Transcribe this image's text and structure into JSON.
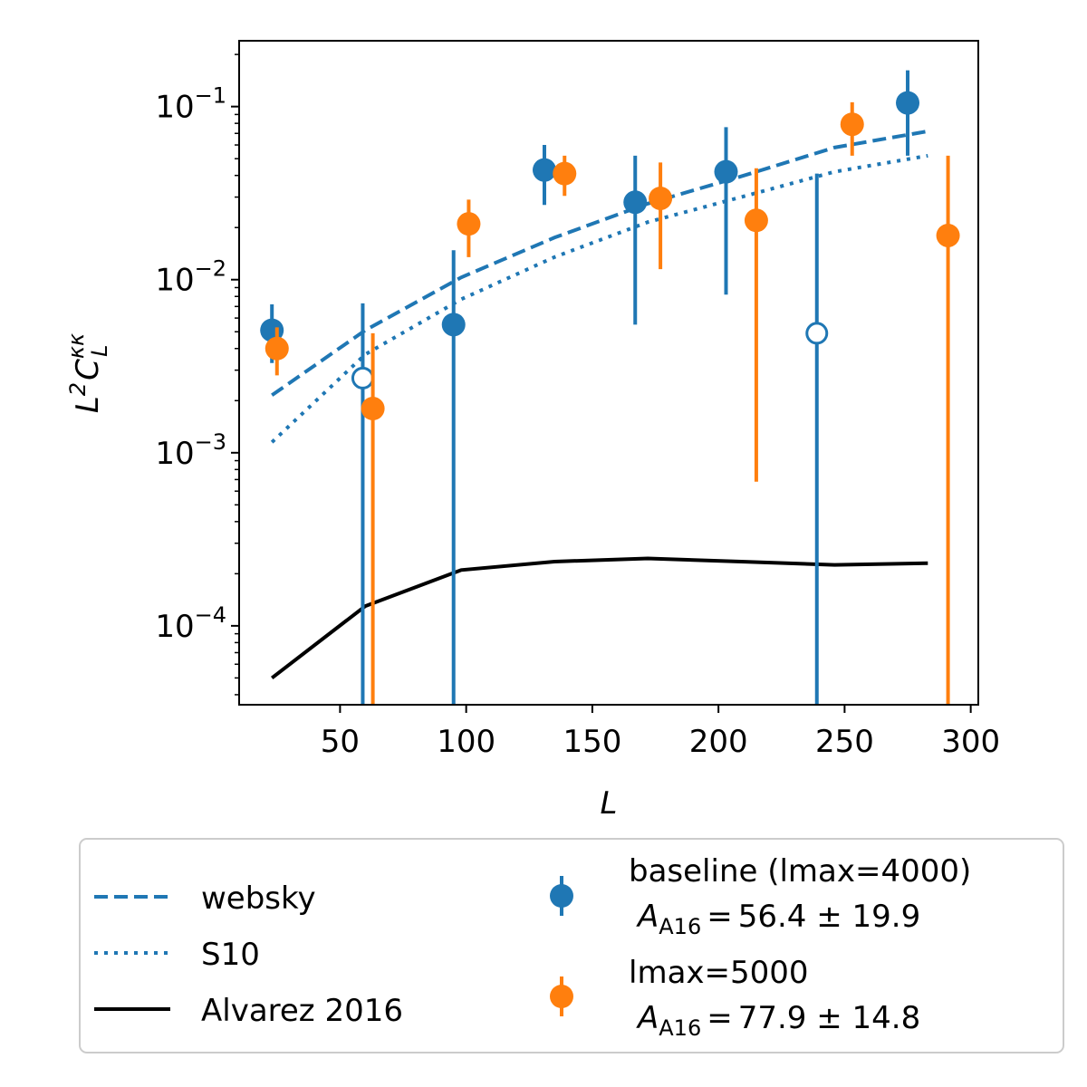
{
  "chart_data": {
    "type": "scatter",
    "xlabel": "L",
    "ylabel": {
      "base": "L",
      "exp": "2",
      "c": "C",
      "sup": "κκ",
      "sub": "L"
    },
    "xlim": [
      10,
      303
    ],
    "ylim": [
      3.5e-05,
      0.24
    ],
    "yscale": "log",
    "x_ticks": [
      50,
      100,
      150,
      200,
      250,
      300
    ],
    "y_ticks": [
      {
        "value": 0.0001,
        "base": "10",
        "exp": "−4"
      },
      {
        "value": 0.001,
        "base": "10",
        "exp": "−3"
      },
      {
        "value": 0.01,
        "base": "10",
        "exp": "−2"
      },
      {
        "value": 0.1,
        "base": "10",
        "exp": "−1"
      }
    ],
    "grid": false,
    "legend_position": "below",
    "lines": [
      {
        "name": "websky",
        "style": "dashed",
        "color": "#1f77b4",
        "x": [
          23,
          60,
          98,
          135,
          172,
          209,
          246,
          283
        ],
        "y": [
          0.00215,
          0.0051,
          0.0103,
          0.0175,
          0.0275,
          0.0395,
          0.058,
          0.072
        ]
      },
      {
        "name": "S10",
        "style": "dotted",
        "color": "#1f77b4",
        "x": [
          23,
          60,
          98,
          135,
          172,
          209,
          246,
          283
        ],
        "y": [
          0.00115,
          0.0037,
          0.0077,
          0.0135,
          0.0215,
          0.03,
          0.042,
          0.052
        ]
      },
      {
        "name": "Alvarez 2016",
        "style": "solid",
        "color": "#000000",
        "x": [
          23,
          60,
          98,
          135,
          172,
          209,
          246,
          283
        ],
        "y": [
          5e-05,
          0.00013,
          0.00021,
          0.000235,
          0.000245,
          0.000235,
          0.000225,
          0.00023
        ]
      }
    ],
    "series": [
      {
        "name": "baseline (lmax=4000)",
        "annotation": "56.4 ± 19.9",
        "color": "#1f77b4",
        "points": [
          {
            "x": 23,
            "y": 0.0051,
            "lo": 0.0033,
            "hi": 0.0072,
            "filled": true
          },
          {
            "x": 59,
            "y": 0.0027,
            "lo": 1e-06,
            "hi": 0.0073,
            "filled": false
          },
          {
            "x": 95,
            "y": 0.0055,
            "lo": 1e-06,
            "hi": 0.0148,
            "filled": true
          },
          {
            "x": 131,
            "y": 0.043,
            "lo": 0.027,
            "hi": 0.06,
            "filled": true
          },
          {
            "x": 167,
            "y": 0.028,
            "lo": 0.0055,
            "hi": 0.052,
            "filled": true
          },
          {
            "x": 203,
            "y": 0.042,
            "lo": 0.0082,
            "hi": 0.076,
            "filled": true
          },
          {
            "x": 239,
            "y": 0.0049,
            "lo": 1e-06,
            "hi": 0.041,
            "filled": false
          },
          {
            "x": 275,
            "y": 0.105,
            "lo": 0.052,
            "hi": 0.162,
            "filled": true
          }
        ]
      },
      {
        "name": "lmax=5000",
        "annotation": "77.9 ± 14.8",
        "color": "#ff7f0e",
        "points": [
          {
            "x": 25,
            "y": 0.004,
            "lo": 0.0028,
            "hi": 0.0053,
            "filled": true
          },
          {
            "x": 63,
            "y": 0.0018,
            "lo": 1e-06,
            "hi": 0.0049,
            "filled": true
          },
          {
            "x": 101,
            "y": 0.021,
            "lo": 0.0135,
            "hi": 0.029,
            "filled": true
          },
          {
            "x": 139,
            "y": 0.041,
            "lo": 0.0305,
            "hi": 0.052,
            "filled": true
          },
          {
            "x": 177,
            "y": 0.0295,
            "lo": 0.0115,
            "hi": 0.0475,
            "filled": true
          },
          {
            "x": 215,
            "y": 0.022,
            "lo": 0.00068,
            "hi": 0.044,
            "filled": true
          },
          {
            "x": 253,
            "y": 0.079,
            "lo": 0.052,
            "hi": 0.106,
            "filled": true
          },
          {
            "x": 291,
            "y": 0.018,
            "lo": 1e-06,
            "hi": 0.052,
            "filled": true
          }
        ]
      }
    ],
    "legend": {
      "amp_symbol": "A",
      "amp_sub": "A16",
      "equals": "="
    }
  }
}
